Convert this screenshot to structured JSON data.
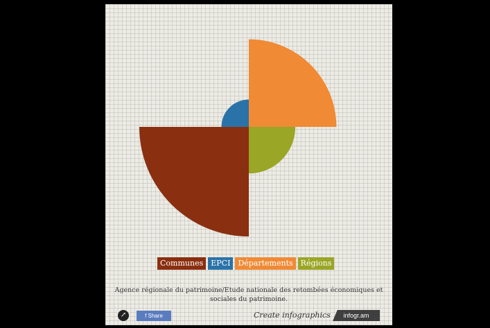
{
  "chart_data": {
    "type": "pie",
    "variant": "polar-area",
    "categories": [
      "Communes",
      "EPCI",
      "Départements",
      "Régions"
    ],
    "values": [
      200,
      50,
      160,
      85
    ],
    "colors": [
      "#8a2f10",
      "#2a73a8",
      "#f08a35",
      "#9aa625"
    ],
    "angles": [
      [
        180,
        270
      ],
      [
        90,
        180
      ],
      [
        0,
        90
      ],
      [
        270,
        360
      ]
    ]
  },
  "legend": [
    "Communes",
    "EPCI",
    "Départements",
    "Régions"
  ],
  "source": "Agence régionale du patrimoine/Etude nationale des retombées économiques et sociales du patrimoine.",
  "footer": {
    "share_icon": "↗",
    "fb_share": "f  Share",
    "create": "Create infographics",
    "logo": "infogr.am"
  }
}
